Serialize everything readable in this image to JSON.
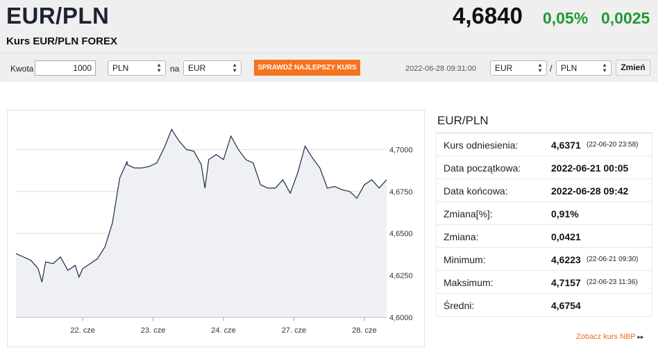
{
  "header": {
    "pair": "EUR/PLN",
    "price": "4,6840",
    "change_pct": "0,05%",
    "change_abs": "0,0025",
    "subtitle": "Kurs EUR/PLN FOREX"
  },
  "converter": {
    "amount_label": "Kwota",
    "amount_value": "1000",
    "from_currency": "PLN",
    "to_label": "na",
    "to_currency": "EUR",
    "best_rate_button": "SPRAWDŹ NAJLEPSZY KURS",
    "timestamp": "2022-06-28 09:31:00",
    "pair_base": "EUR",
    "separator": "/",
    "pair_quote": "PLN",
    "change_button": "Zmień"
  },
  "colors": {
    "positive": "#1e9a35",
    "accent": "#f7731d",
    "line": "#1c2a44",
    "area": "#eef0f3"
  },
  "chart_data": {
    "type": "area",
    "title": "",
    "xlabel": "",
    "ylabel": "",
    "ylim": [
      4.6,
      4.72
    ],
    "yticks": [
      "4,7000",
      "4,6750",
      "4,6500",
      "4,6250",
      "4,6000"
    ],
    "xticks": [
      "22. cze",
      "23. cze",
      "24. cze",
      "27. cze",
      "28. cze"
    ],
    "grid": true,
    "series": [
      {
        "x": [
          0,
          0.02,
          0.04,
          0.06,
          0.07,
          0.08,
          0.1,
          0.12,
          0.14,
          0.16,
          0.17,
          0.18,
          0.2,
          0.22,
          0.24,
          0.26,
          0.28,
          0.3,
          0.3,
          0.32,
          0.34,
          0.36,
          0.38,
          0.4,
          0.42,
          0.44,
          0.46,
          0.48,
          0.5,
          0.51,
          0.52,
          0.54,
          0.56,
          0.58,
          0.6,
          0.62,
          0.64,
          0.66,
          0.68,
          0.7,
          0.72,
          0.74,
          0.76,
          0.78,
          0.8,
          0.82,
          0.84,
          0.86,
          0.88,
          0.9,
          0.92,
          0.94,
          0.96,
          0.98,
          1.0
        ],
        "y": [
          4.638,
          4.636,
          4.634,
          4.629,
          4.621,
          4.633,
          4.632,
          4.636,
          4.628,
          4.631,
          4.624,
          4.629,
          4.632,
          4.635,
          4.642,
          4.656,
          4.683,
          4.693,
          4.691,
          4.689,
          4.689,
          4.69,
          4.692,
          4.701,
          4.712,
          4.705,
          4.7,
          4.699,
          4.691,
          4.677,
          4.694,
          4.697,
          4.694,
          4.708,
          4.7,
          4.694,
          4.692,
          4.679,
          4.677,
          4.677,
          4.682,
          4.674,
          4.686,
          4.702,
          4.695,
          4.689,
          4.677,
          4.678,
          4.676,
          4.675,
          4.671,
          4.679,
          4.682,
          4.677,
          4.682
        ]
      }
    ]
  },
  "stats": {
    "title": "EUR/PLN",
    "rows": [
      {
        "label": "Kurs odniesienia:",
        "value": "4,6371",
        "date": "(22-06-20 23:58)"
      },
      {
        "label": "Data początkowa:",
        "value": "2022-06-21 00:05",
        "date": ""
      },
      {
        "label": "Data końcowa:",
        "value": "2022-06-28 09:42",
        "date": ""
      },
      {
        "label": "Zmiana[%]:",
        "value": "0,91%",
        "date": ""
      },
      {
        "label": "Zmiana:",
        "value": "0,0421",
        "date": ""
      },
      {
        "label": "Minimum:",
        "value": "4,6223",
        "date": "(22-06-21 09:30)"
      },
      {
        "label": "Maksimum:",
        "value": "4,7157",
        "date": "(22-06-23 11:36)"
      },
      {
        "label": "Średni:",
        "value": "4,6754",
        "date": ""
      }
    ]
  },
  "footer": {
    "nbp_link": "Zobacz kurs NBP",
    "nbp_arrow": "▸▸"
  }
}
